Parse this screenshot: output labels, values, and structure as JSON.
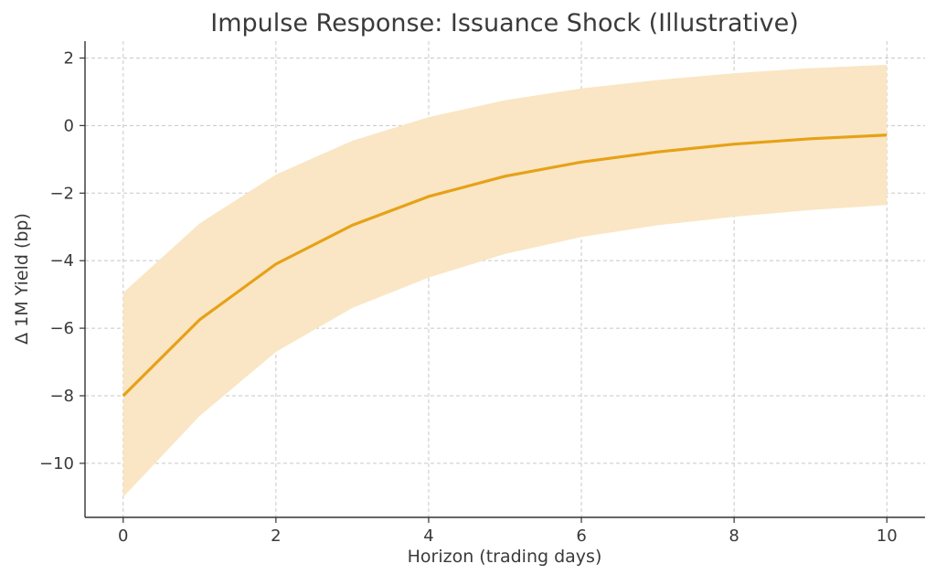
{
  "chart_data": {
    "type": "line",
    "title": "Impulse Response: Issuance Shock (Illustrative)",
    "xlabel": "Horizon (trading days)",
    "ylabel": "Δ 1M Yield (bp)",
    "xlim": [
      -0.5,
      10.5
    ],
    "ylim": [
      -11.6,
      2.5
    ],
    "x_ticks": [
      0,
      2,
      4,
      6,
      8,
      10
    ],
    "x_tick_labels": [
      "0",
      "2",
      "4",
      "6",
      "8",
      "10"
    ],
    "y_ticks": [
      2,
      0,
      -2,
      -4,
      -6,
      -8,
      -10
    ],
    "y_tick_labels": [
      "2",
      "0",
      "−2",
      "−4",
      "−6",
      "−8",
      "−10"
    ],
    "grid": true,
    "x": [
      0,
      1,
      2,
      3,
      4,
      5,
      6,
      7,
      8,
      9,
      10
    ],
    "series": [
      {
        "values": [
          -8.0,
          -5.75,
          -4.1,
          -2.95,
          -2.1,
          -1.5,
          -1.08,
          -0.78,
          -0.55,
          -0.39,
          -0.28
        ],
        "color": "#E6A117"
      }
    ],
    "band": {
      "lower": [
        -11.0,
        -8.6,
        -6.7,
        -5.4,
        -4.5,
        -3.8,
        -3.3,
        -2.95,
        -2.7,
        -2.5,
        -2.35
      ],
      "upper": [
        -4.95,
        -2.9,
        -1.45,
        -0.45,
        0.25,
        0.75,
        1.1,
        1.35,
        1.55,
        1.7,
        1.8
      ],
      "color": "#FAE6C4"
    }
  }
}
